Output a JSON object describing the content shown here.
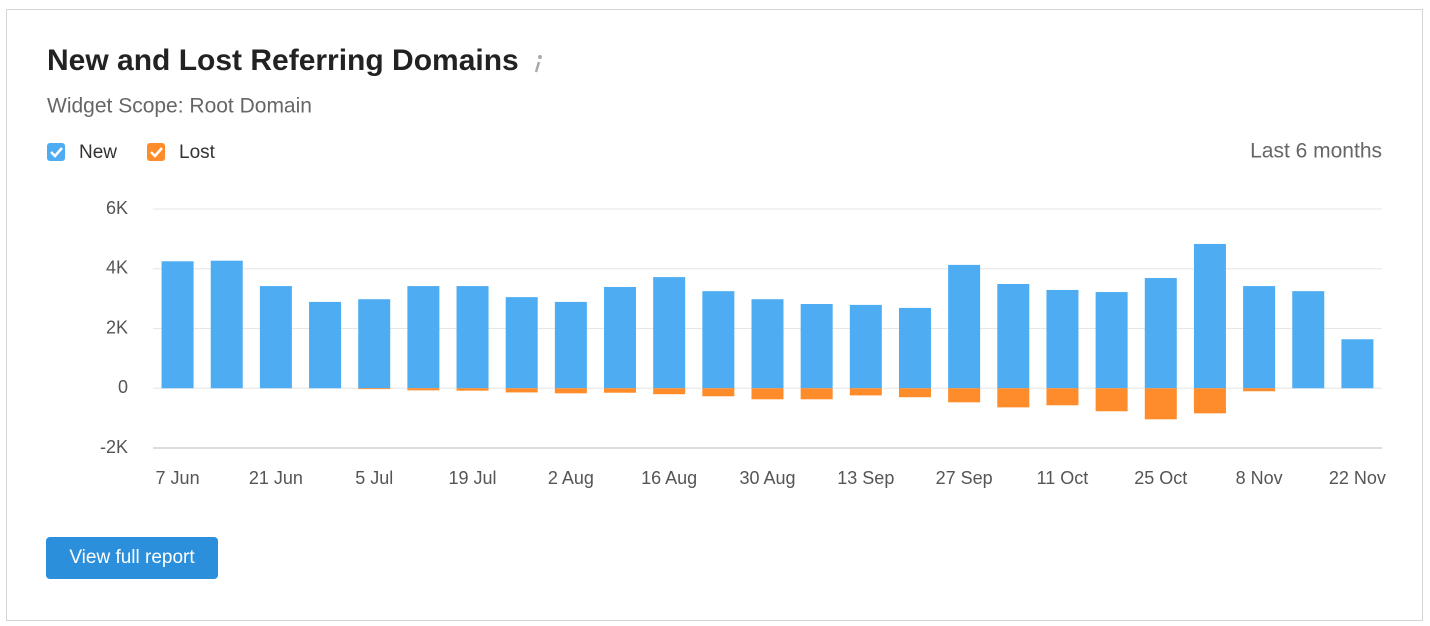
{
  "chart_data": {
    "type": "bar",
    "title": "New and Lost Referring Domains",
    "subtitle": "Widget Scope: Root Domain",
    "period": "Last 6 months",
    "button": "View full report",
    "categories": [
      "7 Jun",
      null,
      "21 Jun",
      null,
      "5 Jul",
      null,
      "19 Jul",
      null,
      "2 Aug",
      null,
      "16 Aug",
      null,
      "30 Aug",
      null,
      "13 Sep",
      null,
      "27 Sep",
      null,
      "11 Oct",
      null,
      "25 Oct",
      null,
      "8 Nov",
      null,
      "22 Nov"
    ],
    "series": [
      {
        "name": "New",
        "color": "#4eadf2",
        "values": [
          4250,
          4270,
          3420,
          2890,
          2980,
          3420,
          3420,
          3050,
          2890,
          3390,
          3720,
          3250,
          2980,
          2820,
          2790,
          2690,
          4130,
          3490,
          3290,
          3220,
          3690,
          4830,
          3420,
          3250,
          1640
        ]
      },
      {
        "name": "Lost",
        "color": "#ff8c2a",
        "values": [
          0,
          0,
          0,
          0,
          -30,
          -70,
          -80,
          -140,
          -170,
          -150,
          -200,
          -270,
          -370,
          -370,
          -240,
          -300,
          -470,
          -640,
          -570,
          -770,
          -1040,
          -840,
          -100,
          0,
          0
        ]
      }
    ],
    "ylim": [
      -2000,
      6000
    ],
    "yticks": [
      {
        "value": -2000,
        "label": "-2K"
      },
      0,
      {
        "value": 2000,
        "label": "2K"
      },
      {
        "value": 4000,
        "label": "4K"
      },
      {
        "value": 6000,
        "label": "6K"
      }
    ],
    "grid": true
  }
}
